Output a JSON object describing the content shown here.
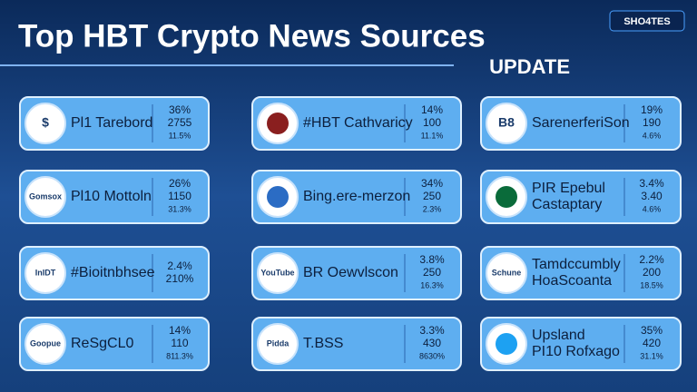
{
  "header": {
    "title": "Top HBT Crypto News Sources",
    "subtitle": "UPDATE",
    "badge": "SHO4TES"
  },
  "cards": [
    {
      "logo": "$",
      "name": [
        "Pl1 Tarebord"
      ],
      "stats": [
        "36%",
        "2755",
        "11.5%"
      ]
    },
    {
      "name": [
        "#HBT Cathvaricy"
      ],
      "stats": [
        "14%",
        "100",
        "11.1%"
      ]
    },
    {
      "logo": "B8",
      "name": [
        "SarenerferiSon"
      ],
      "stats": [
        "19%",
        "190",
        "4.6%"
      ]
    },
    {
      "logo": "Gomsox",
      "name": [
        "Pl10 Mottoln"
      ],
      "stats": [
        "26%",
        "1150",
        "31.3%"
      ]
    },
    {
      "name": [
        "Bing.ere-merzon"
      ],
      "stats": [
        "34%",
        "250",
        "2.3%"
      ]
    },
    {
      "name": [
        "PIR Epebul",
        "Castaptary"
      ],
      "stats": [
        "3.4%",
        "3.40",
        "4.6%"
      ]
    },
    {
      "logo": "InIDT",
      "name": [
        "#Bioitnbhsee"
      ],
      "stats": [
        "2.4%",
        "210%"
      ]
    },
    {
      "logo": "YouTube",
      "name": [
        "BR Oewvlscon"
      ],
      "stats": [
        "3.8%",
        "250",
        "16.3%"
      ]
    },
    {
      "logo": "Schune",
      "name": [
        "Tamdccumbly",
        "HoaScoanta"
      ],
      "stats": [
        "2.2%",
        "200",
        "18.5%"
      ]
    },
    {
      "logo": "Goopue",
      "name": [
        "ReSgCL0"
      ],
      "stats": [
        "14%",
        "110",
        "811.3%"
      ]
    },
    {
      "logo": "Pidda",
      "name": [
        "T.BSS"
      ],
      "stats": [
        "3.3%",
        "430",
        "8630%"
      ]
    },
    {
      "name": [
        "Upsland",
        "PI10 Rofxago"
      ],
      "stats": [
        "35%",
        "420",
        "31.1%"
      ]
    }
  ]
}
